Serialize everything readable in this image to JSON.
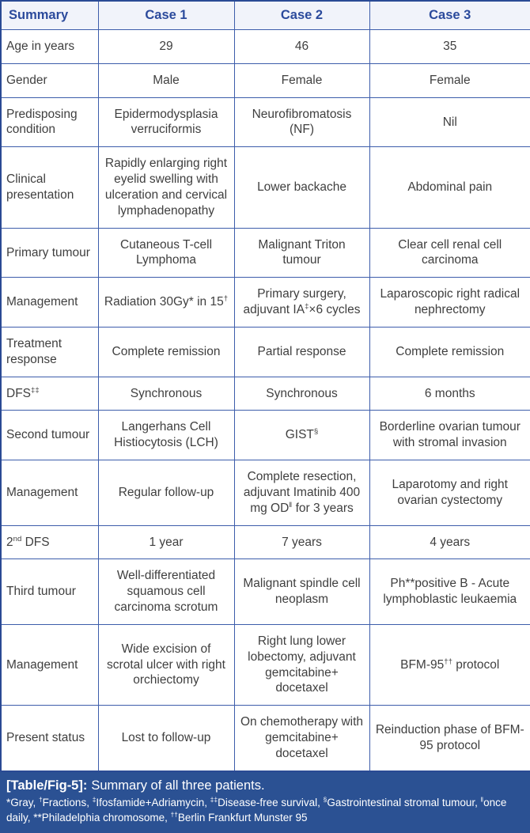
{
  "table": {
    "headers": [
      "Summary",
      "Case 1",
      "Case 2",
      "Case 3"
    ],
    "rows": [
      {
        "label": "Age in years",
        "cells": [
          "29",
          "46",
          "35"
        ]
      },
      {
        "label": "Gender",
        "cells": [
          "Male",
          "Female",
          "Female"
        ]
      },
      {
        "label": "Predisposing condition",
        "cells": [
          "Epidermodysplasia verruciformis",
          "Neurofibromatosis (NF)",
          "Nil"
        ]
      },
      {
        "label": "Clinical presentation",
        "cells": [
          "Rapidly enlarging right eyelid swelling with ulceration and cervical lymphadenopathy",
          "Lower backache",
          "Abdominal pain"
        ]
      },
      {
        "label": "Primary tumour",
        "cells": [
          "Cutaneous T-cell Lymphoma",
          "Malignant Triton tumour",
          "Clear cell renal cell carcinoma"
        ]
      },
      {
        "label": "Management",
        "cells": [
          "Radiation 30Gy* in 15^{†}",
          "Primary surgery, adjuvant IA^{‡}×6 cycles",
          "Laparoscopic right radical nephrectomy"
        ]
      },
      {
        "label": "Treatment response",
        "cells": [
          "Complete remission",
          "Partial response",
          "Complete remission"
        ]
      },
      {
        "label": "DFS^{‡‡}",
        "cells": [
          "Synchronous",
          "Synchronous",
          "6 months"
        ]
      },
      {
        "label": "Second tumour",
        "cells": [
          "Langerhans Cell Histiocytosis (LCH)",
          "GIST^{§}",
          "Borderline ovarian tumour with stromal invasion"
        ]
      },
      {
        "label": "Management",
        "cells": [
          "Regular follow-up",
          "Complete resection, adjuvant Imatinib 400 mg OD^{‖} for 3 years",
          "Laparotomy and right ovarian cystectomy"
        ]
      },
      {
        "label": "2^{nd} DFS",
        "cells": [
          "1 year",
          "7 years",
          "4 years"
        ]
      },
      {
        "label": "Third tumour",
        "cells": [
          "Well-differentiated squamous cell carcinoma scrotum",
          "Malignant spindle cell neoplasm",
          "Ph**positive B - Acute lymphoblastic leukaemia"
        ]
      },
      {
        "label": "Management",
        "cells": [
          "Wide excision of scrotal ulcer with right orchiectomy",
          "Right lung lower lobectomy, adjuvant gemcitabine+ docetaxel",
          "BFM-95^{††} protocol"
        ]
      },
      {
        "label": "Present status",
        "cells": [
          "Lost to follow-up",
          "On chemotherapy with gemcitabine+ docetaxel",
          "Reinduction phase of BFM-95 protocol"
        ]
      }
    ]
  },
  "footer": {
    "caption_label": "[Table/Fig-5]:",
    "caption_text": "Summary of all three patients.",
    "footnotes": "*Gray, ^{†}Fractions, ^{‡}Ifosfamide+Adriamycin, ^{‡‡}Disease-free survival, ^{§}Gastrointestinal stromal tumour, ^{‖}once daily, **Philadelphia chromosome, ^{††}Berlin Frankfurt Munster 95"
  },
  "colors": {
    "grid_border": "#3d5dab",
    "outer_border": "#2a4a94",
    "header_text": "#2b4a9c",
    "header_background": "#f1f3fa",
    "body_text": "#3f3f3f",
    "footer_background": "#2b5193",
    "footer_text": "#ffffff"
  }
}
